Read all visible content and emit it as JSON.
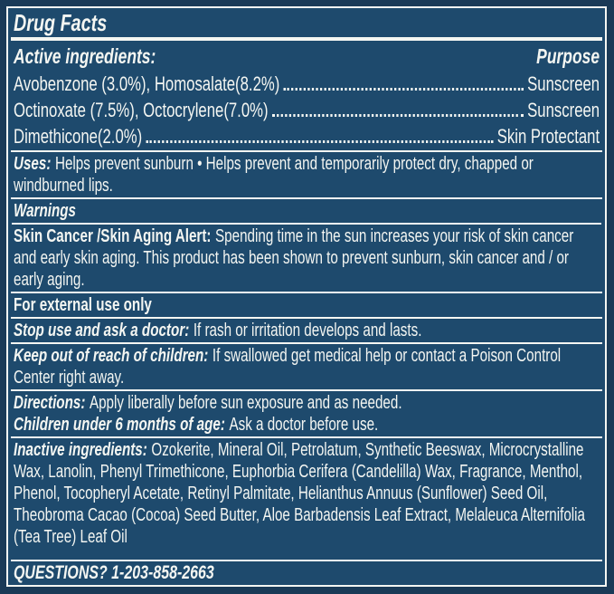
{
  "colors": {
    "label_background": "#1e4a6d",
    "frame_border": "#1a3a57",
    "text": "#f4f6f2"
  },
  "title": "Drug Facts",
  "active_ingredients": {
    "heading": "Active ingredients:",
    "purpose_heading": "Purpose",
    "rows": [
      {
        "name": "Avobenzone (3.0%), Homosalate(8.2%)",
        "purpose": "Sunscreen"
      },
      {
        "name": "Octinoxate (7.5%), Octocrylene(7.0%)",
        "purpose": "Sunscreen"
      },
      {
        "name": "Dimethicone(2.0%)",
        "purpose": "Skin Protectant"
      }
    ]
  },
  "uses": {
    "label": "Uses:",
    "text": "Helps prevent sunburn • Helps prevent and temporarily protect dry, chapped or windburned lips."
  },
  "warnings": {
    "heading": "Warnings",
    "skin_alert_label": "Skin Cancer /Skin Aging Alert:",
    "skin_alert_text": "Spending time in the sun increases your risk of skin cancer and early skin aging. This product has been shown to prevent sunburn, skin cancer and / or early aging.",
    "external_use": "For external use only",
    "stop_use_label": "Stop use and ask a doctor:",
    "stop_use_text": "If rash or irritation develops and lasts.",
    "keep_out_label": "Keep out of reach of children:",
    "keep_out_text": "If swallowed get medical help or contact a Poison Control Center right away."
  },
  "directions": {
    "label": "Directions:",
    "text": "Apply liberally before sun exposure and as needed.",
    "children_label": "Children under 6 months of age:",
    "children_text": "Ask a doctor before use."
  },
  "inactive_ingredients": {
    "label": "Inactive ingredients:",
    "text": "Ozokerite, Mineral Oil, Petrolatum, Synthetic Beeswax, Microcrystalline Wax, Lanolin, Phenyl Trimethicone, Euphorbia Cerifera (Candelilla) Wax, Fragrance, Menthol, Phenol, Tocopheryl Acetate, Retinyl Palmitate, Helianthus Annuus (Sunflower) Seed Oil, Theobroma Cacao (Cocoa) Seed Butter, Aloe Barbadensis Leaf Extract, Melaleuca Alternifolia (Tea Tree) Leaf Oil"
  },
  "questions": "QUESTIONS? 1-203-858-2663"
}
